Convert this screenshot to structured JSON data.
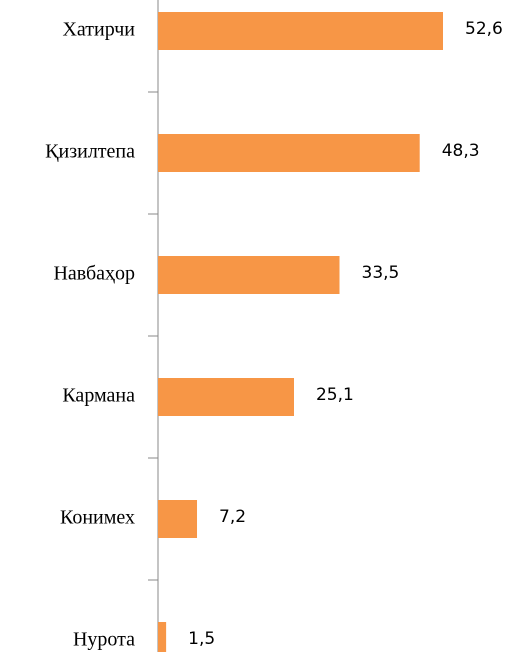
{
  "chart_data": {
    "type": "bar",
    "orientation": "horizontal",
    "categories": [
      "Хатирчи",
      "Қизилтепа",
      "Навбаҳор",
      "Кармана",
      "Конимех",
      "Нурота"
    ],
    "values": [
      52.6,
      48.3,
      33.5,
      25.1,
      7.2,
      1.5
    ],
    "value_labels": [
      "52,6",
      "48,3",
      "33,5",
      "25,1",
      "7,2",
      "1,5"
    ],
    "color": "#f79646"
  }
}
